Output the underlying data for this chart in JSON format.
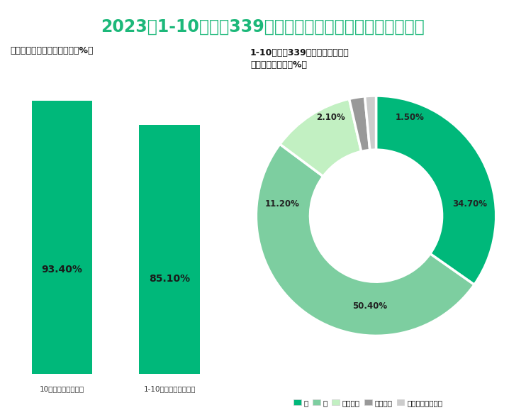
{
  "title": "2023年1-10月全国339个地级及以上城市平均空气质量情况",
  "title_color": "#1db87a",
  "title_fontsize": 17,
  "background_color": "#ffffff",
  "bar_title": "平均空气质量优良天数比例（%）",
  "bar_categories": [
    "10月地级及以上城市",
    "1-10月地级及以上城市"
  ],
  "bar_values": [
    93.4,
    85.1
  ],
  "bar_color": "#00b87a",
  "bar_text_color": "#1a1a1a",
  "donut_title": "1-10月全国339个地级及以上城市\n各级别天数比例（%）",
  "donut_values": [
    34.7,
    50.4,
    11.2,
    2.1,
    1.5
  ],
  "donut_colors": [
    "#00b87a",
    "#7dcea0",
    "#c2f0c2",
    "#999999",
    "#cccccc"
  ],
  "donut_pct_labels": [
    "34.70%",
    "50.40%",
    "11.20%",
    "2.10%",
    "1.50%"
  ],
  "legend_colors": [
    "#00b87a",
    "#7dcea0",
    "#c2f0c2",
    "#999999",
    "#cccccc"
  ],
  "legend_labels": [
    "优",
    "良",
    "轻度污染",
    "中度污染",
    "重度（严重）污染"
  ]
}
